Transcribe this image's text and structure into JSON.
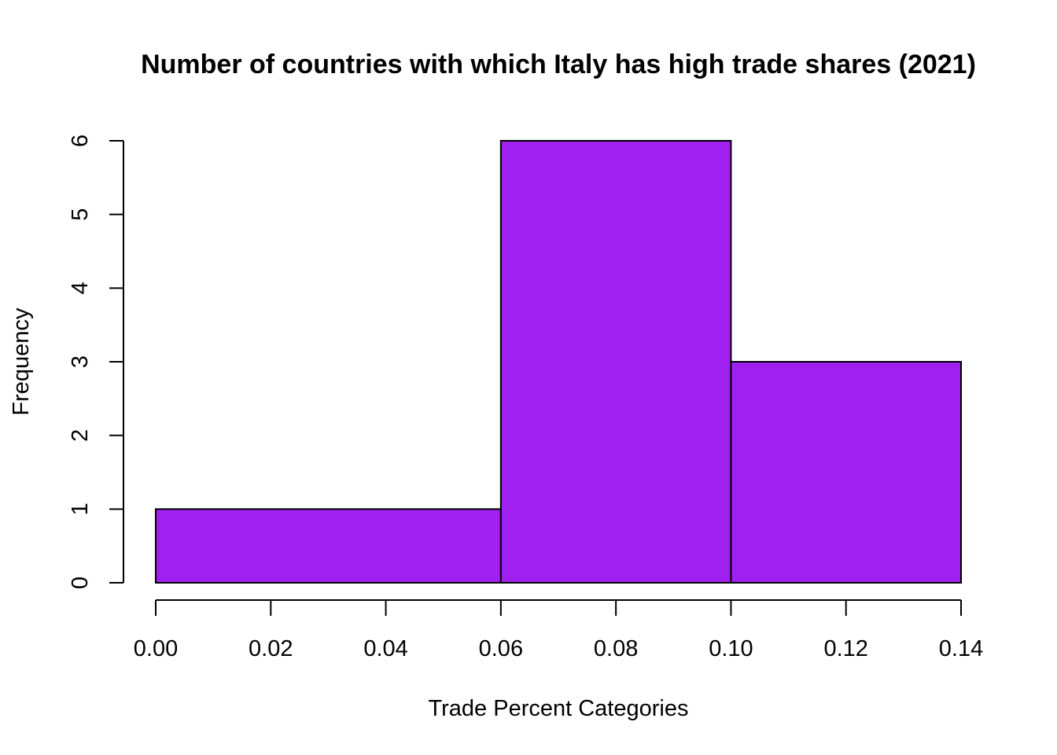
{
  "chart_data": {
    "type": "bar",
    "subtype": "histogram",
    "title": "Number of countries with which Italy has high trade shares (2021)",
    "xlabel": "Trade Percent Categories",
    "ylabel": "Frequency",
    "bins": [
      {
        "start": 0.0,
        "end": 0.06,
        "value": 1
      },
      {
        "start": 0.06,
        "end": 0.1,
        "value": 6
      },
      {
        "start": 0.1,
        "end": 0.14,
        "value": 3
      }
    ],
    "xlim": [
      0.0,
      0.14
    ],
    "ylim": [
      0,
      6
    ],
    "x_ticks": [
      "0.00",
      "0.02",
      "0.04",
      "0.06",
      "0.08",
      "0.10",
      "0.12",
      "0.14"
    ],
    "y_ticks": [
      "0",
      "1",
      "2",
      "3",
      "4",
      "5",
      "6"
    ],
    "bar_color": "#A020F0",
    "border_color": "#000000",
    "grid": false,
    "legend": "none"
  }
}
